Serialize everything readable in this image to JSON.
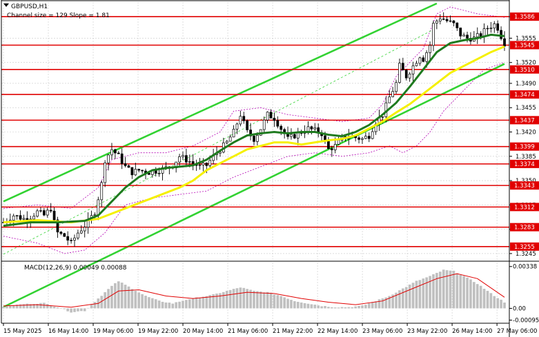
{
  "header": {
    "symbol_line": "GBPUSD,H1",
    "channel_info": "Channel size = 129 Slope = 1.81",
    "macd_label": "MACD(12,26,9) 0.00049 0.00088"
  },
  "colors": {
    "background": "#ffffff",
    "grid": "#c8c8c8",
    "level_line": "#e10000",
    "level_tag": "#e10000",
    "candle": "#000000",
    "ma_fast": "#1e7a1e",
    "ma_slow": "#f5f000",
    "channel": "#32d232",
    "bollinger": "#b400b4",
    "macd_hist": "#c0c0c0",
    "macd_signal": "#e10000"
  },
  "chart_data": {
    "type": "candlestick",
    "symbol": "GBPUSD",
    "timeframe": "H1",
    "ylim": [
      1.3235,
      1.3607
    ],
    "y_ticks": [
      1.3245,
      1.328,
      1.3315,
      1.335,
      1.3385,
      1.342,
      1.3455,
      1.349,
      1.352,
      1.3555,
      1.3586
    ],
    "y_tick_labels": [
      "1.3245",
      "1.3280",
      "1.3315",
      "1.3350",
      "1.3385",
      "1.3420",
      "1.3455",
      "1.3490",
      "1.3520",
      "1.3555",
      "1.3586"
    ],
    "x_tick_labels": [
      "15 May 2025",
      "16 May 14:00",
      "19 May 06:00",
      "19 May 22:00",
      "20 May 14:00",
      "21 May 06:00",
      "21 May 22:00",
      "22 May 14:00",
      "23 May 06:00",
      "23 May 22:00",
      "26 May 14:00",
      "27 May 06:00"
    ],
    "levels": [
      1.3586,
      1.3545,
      1.351,
      1.3474,
      1.3437,
      1.3399,
      1.3374,
      1.3343,
      1.3312,
      1.3283,
      1.3255
    ],
    "level_labels": [
      "1.3586",
      "1.3545",
      "1.3510",
      "1.3474",
      "1.3437",
      "1.3399",
      "1.3374",
      "1.3343",
      "1.3312",
      "1.3283",
      "1.3255"
    ],
    "close_path": [
      [
        0,
        1.329
      ],
      [
        3,
        1.33
      ],
      [
        6,
        1.3295
      ],
      [
        8,
        1.3298
      ],
      [
        10,
        1.3305
      ],
      [
        12,
        1.33
      ],
      [
        14,
        1.331
      ],
      [
        15,
        1.329
      ],
      [
        16,
        1.3275
      ],
      [
        18,
        1.327
      ],
      [
        20,
        1.326
      ],
      [
        22,
        1.3275
      ],
      [
        24,
        1.3285
      ],
      [
        25,
        1.329
      ],
      [
        27,
        1.3305
      ],
      [
        29,
        1.3345
      ],
      [
        30,
        1.338
      ],
      [
        32,
        1.3395
      ],
      [
        34,
        1.3385
      ],
      [
        36,
        1.337
      ],
      [
        38,
        1.3362
      ],
      [
        40,
        1.3365
      ],
      [
        43,
        1.3362
      ],
      [
        46,
        1.3365
      ],
      [
        48,
        1.3368
      ],
      [
        50,
        1.3372
      ],
      [
        52,
        1.3385
      ],
      [
        54,
        1.338
      ],
      [
        56,
        1.3375
      ],
      [
        58,
        1.337
      ],
      [
        60,
        1.3372
      ],
      [
        62,
        1.3385
      ],
      [
        64,
        1.3395
      ],
      [
        66,
        1.3405
      ],
      [
        68,
        1.342
      ],
      [
        70,
        1.3445
      ],
      [
        72,
        1.342
      ],
      [
        74,
        1.341
      ],
      [
        76,
        1.3425
      ],
      [
        78,
        1.3445
      ],
      [
        80,
        1.344
      ],
      [
        82,
        1.3425
      ],
      [
        84,
        1.341
      ],
      [
        86,
        1.3415
      ],
      [
        88,
        1.342
      ],
      [
        90,
        1.3425
      ],
      [
        92,
        1.3422
      ],
      [
        94,
        1.3418
      ],
      [
        96,
        1.3395
      ],
      [
        98,
        1.34
      ],
      [
        100,
        1.341
      ],
      [
        102,
        1.3415
      ],
      [
        104,
        1.3412
      ],
      [
        106,
        1.341
      ],
      [
        108,
        1.3415
      ],
      [
        110,
        1.3435
      ],
      [
        112,
        1.3445
      ],
      [
        114,
        1.347
      ],
      [
        116,
        1.349
      ],
      [
        117,
        1.3515
      ],
      [
        119,
        1.35
      ],
      [
        121,
        1.3515
      ],
      [
        123,
        1.353
      ],
      [
        124,
        1.3525
      ],
      [
        126,
        1.3545
      ],
      [
        127,
        1.3575
      ],
      [
        129,
        1.3585
      ],
      [
        131,
        1.358
      ],
      [
        133,
        1.3575
      ],
      [
        135,
        1.356
      ],
      [
        137,
        1.3555
      ],
      [
        139,
        1.3555
      ],
      [
        141,
        1.356
      ],
      [
        143,
        1.357
      ],
      [
        145,
        1.3575
      ],
      [
        146,
        1.357
      ],
      [
        147,
        1.3558
      ],
      [
        148,
        1.3548
      ]
    ],
    "ma_fast_points": [
      [
        0,
        1.3285
      ],
      [
        8,
        1.329
      ],
      [
        16,
        1.329
      ],
      [
        24,
        1.3292
      ],
      [
        28,
        1.33
      ],
      [
        32,
        1.332
      ],
      [
        36,
        1.334
      ],
      [
        40,
        1.3355
      ],
      [
        44,
        1.3365
      ],
      [
        48,
        1.3368
      ],
      [
        52,
        1.337
      ],
      [
        56,
        1.3372
      ],
      [
        60,
        1.338
      ],
      [
        64,
        1.3393
      ],
      [
        68,
        1.3405
      ],
      [
        72,
        1.3415
      ],
      [
        76,
        1.3418
      ],
      [
        80,
        1.342
      ],
      [
        84,
        1.3418
      ],
      [
        88,
        1.342
      ],
      [
        92,
        1.342
      ],
      [
        96,
        1.3416
      ],
      [
        100,
        1.3414
      ],
      [
        104,
        1.342
      ],
      [
        108,
        1.343
      ],
      [
        112,
        1.3445
      ],
      [
        116,
        1.3462
      ],
      [
        120,
        1.3485
      ],
      [
        124,
        1.351
      ],
      [
        128,
        1.3535
      ],
      [
        132,
        1.3548
      ],
      [
        136,
        1.3552
      ],
      [
        140,
        1.3555
      ],
      [
        144,
        1.356
      ],
      [
        148,
        1.3558
      ]
    ],
    "ma_slow_points": [
      [
        0,
        1.329
      ],
      [
        10,
        1.3293
      ],
      [
        20,
        1.329
      ],
      [
        28,
        1.3295
      ],
      [
        36,
        1.331
      ],
      [
        44,
        1.3325
      ],
      [
        52,
        1.334
      ],
      [
        56,
        1.335
      ],
      [
        60,
        1.3365
      ],
      [
        64,
        1.3375
      ],
      [
        68,
        1.3385
      ],
      [
        72,
        1.3395
      ],
      [
        76,
        1.34
      ],
      [
        80,
        1.3405
      ],
      [
        84,
        1.3405
      ],
      [
        88,
        1.3402
      ],
      [
        92,
        1.3405
      ],
      [
        96,
        1.3408
      ],
      [
        100,
        1.341
      ],
      [
        104,
        1.3415
      ],
      [
        108,
        1.3425
      ],
      [
        112,
        1.3435
      ],
      [
        116,
        1.3448
      ],
      [
        120,
        1.346
      ],
      [
        124,
        1.3475
      ],
      [
        128,
        1.349
      ],
      [
        132,
        1.3505
      ],
      [
        136,
        1.3515
      ],
      [
        140,
        1.3525
      ],
      [
        144,
        1.3535
      ],
      [
        148,
        1.3543
      ]
    ],
    "channel_upper": [
      [
        0,
        1.332
      ],
      [
        128,
        1.3605
      ]
    ],
    "channel_lower": [
      [
        0,
        1.3168
      ],
      [
        148,
        1.3518
      ]
    ],
    "channel_mid_dashed": [
      [
        0,
        1.3244
      ],
      [
        128,
        1.357
      ]
    ],
    "bollinger_upper": [
      [
        0,
        1.331
      ],
      [
        10,
        1.3315
      ],
      [
        20,
        1.331
      ],
      [
        28,
        1.334
      ],
      [
        32,
        1.338
      ],
      [
        40,
        1.339
      ],
      [
        48,
        1.339
      ],
      [
        56,
        1.34
      ],
      [
        64,
        1.342
      ],
      [
        68,
        1.345
      ],
      [
        76,
        1.3455
      ],
      [
        84,
        1.3445
      ],
      [
        92,
        1.344
      ],
      [
        100,
        1.3435
      ],
      [
        108,
        1.344
      ],
      [
        112,
        1.346
      ],
      [
        116,
        1.35
      ],
      [
        120,
        1.352
      ],
      [
        124,
        1.354
      ],
      [
        128,
        1.359
      ],
      [
        132,
        1.36
      ],
      [
        136,
        1.3595
      ],
      [
        140,
        1.359
      ],
      [
        148,
        1.3585
      ]
    ],
    "bollinger_lower": [
      [
        0,
        1.327
      ],
      [
        10,
        1.326
      ],
      [
        18,
        1.3245
      ],
      [
        24,
        1.325
      ],
      [
        30,
        1.3275
      ],
      [
        36,
        1.3315
      ],
      [
        44,
        1.3325
      ],
      [
        52,
        1.333
      ],
      [
        60,
        1.3335
      ],
      [
        68,
        1.3355
      ],
      [
        76,
        1.337
      ],
      [
        84,
        1.3385
      ],
      [
        92,
        1.339
      ],
      [
        100,
        1.3385
      ],
      [
        108,
        1.339
      ],
      [
        114,
        1.34
      ],
      [
        118,
        1.339
      ],
      [
        122,
        1.34
      ],
      [
        126,
        1.342
      ],
      [
        130,
        1.345
      ],
      [
        136,
        1.348
      ],
      [
        142,
        1.351
      ],
      [
        148,
        1.352
      ]
    ],
    "macd": {
      "label": "MACD(12,26,9) 0.00049 0.00088",
      "y_ticks": [
        0.00338,
        0.0,
        -0.00095
      ],
      "y_tick_labels": [
        "0.00338",
        "0.00",
        "-0.00095"
      ],
      "ylim": [
        -0.0012,
        0.0037
      ],
      "hist": [
        [
          0,
          0.00015
        ],
        [
          6,
          0.00035
        ],
        [
          12,
          0.00042
        ],
        [
          16,
          0.0001
        ],
        [
          20,
          -0.0003
        ],
        [
          24,
          -0.0002
        ],
        [
          28,
          0.0008
        ],
        [
          32,
          0.0018
        ],
        [
          34,
          0.0022
        ],
        [
          38,
          0.0016
        ],
        [
          42,
          0.001
        ],
        [
          46,
          0.0006
        ],
        [
          50,
          0.0004
        ],
        [
          54,
          0.0007
        ],
        [
          58,
          0.0009
        ],
        [
          62,
          0.0011
        ],
        [
          66,
          0.0014
        ],
        [
          70,
          0.0017
        ],
        [
          74,
          0.0014
        ],
        [
          78,
          0.0013
        ],
        [
          82,
          0.001
        ],
        [
          86,
          0.0006
        ],
        [
          90,
          0.0004
        ],
        [
          94,
          0.0002
        ],
        [
          98,
          0.0001
        ],
        [
          102,
          0.0001
        ],
        [
          106,
          0.0002
        ],
        [
          110,
          0.0006
        ],
        [
          114,
          0.001
        ],
        [
          118,
          0.0016
        ],
        [
          122,
          0.0022
        ],
        [
          126,
          0.0026
        ],
        [
          130,
          0.0031
        ],
        [
          133,
          0.003
        ],
        [
          136,
          0.0026
        ],
        [
          140,
          0.002
        ],
        [
          144,
          0.0012
        ],
        [
          148,
          0.0005
        ]
      ],
      "signal": [
        [
          0,
          0.0002
        ],
        [
          10,
          0.0003
        ],
        [
          20,
          0.0001
        ],
        [
          28,
          0.0004
        ],
        [
          34,
          0.0014
        ],
        [
          40,
          0.0015
        ],
        [
          48,
          0.001
        ],
        [
          56,
          0.0008
        ],
        [
          64,
          0.001
        ],
        [
          72,
          0.0013
        ],
        [
          80,
          0.0012
        ],
        [
          88,
          0.0008
        ],
        [
          96,
          0.0005
        ],
        [
          104,
          0.0003
        ],
        [
          112,
          0.0006
        ],
        [
          120,
          0.0015
        ],
        [
          128,
          0.0024
        ],
        [
          134,
          0.0028
        ],
        [
          140,
          0.0024
        ],
        [
          148,
          0.0009
        ]
      ]
    }
  }
}
